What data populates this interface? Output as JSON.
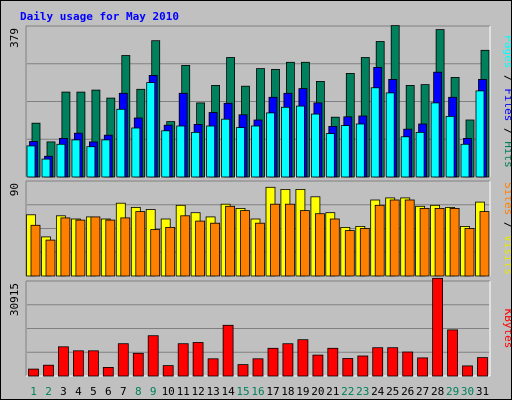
{
  "chart_data": {
    "type": "bar",
    "title": "Daily usage for May 2010",
    "x": [
      "1",
      "2",
      "3",
      "4",
      "5",
      "6",
      "7",
      "8",
      "9",
      "10",
      "11",
      "12",
      "13",
      "14",
      "15",
      "16",
      "17",
      "18",
      "19",
      "20",
      "21",
      "22",
      "23",
      "24",
      "25",
      "26",
      "27",
      "28",
      "29",
      "30",
      "31"
    ],
    "weekend_days": [
      "1",
      "2",
      "8",
      "9",
      "15",
      "16",
      "22",
      "23",
      "29",
      "30"
    ],
    "panels": [
      {
        "max_label": "379",
        "ylim": [
          0,
          379
        ],
        "series": [
          {
            "name": "Pages",
            "color": "#00ffff",
            "values": [
              78,
              45,
              82,
              93,
              76,
              93,
              170,
              123,
              237,
              116,
              128,
              112,
              128,
              145,
              124,
              128,
              161,
              175,
              178,
              158,
              109,
              129,
              133,
              224,
              211,
              101,
              112,
              186,
              152,
              82,
              216
            ]
          },
          {
            "name": "Files",
            "color": "#0000ff",
            "values": [
              89,
              52,
              97,
              110,
              88,
              105,
              210,
              148,
              255,
              130,
              210,
              132,
              162,
              185,
              156,
              143,
              200,
              210,
              222,
              186,
              127,
              151,
              153,
              275,
              245,
              120,
              133,
              263,
              200,
              97,
              245
            ]
          },
          {
            "name": "Hits",
            "color": "#00805c",
            "values": [
              135,
              88,
              213,
              213,
              218,
              198,
              305,
              220,
              342,
              139,
              280,
              186,
              230,
              300,
              228,
              272,
              270,
              288,
              288,
              240,
              150,
              260,
              300,
              340,
              380,
              230,
              232,
              370,
              250,
              143,
              318
            ]
          }
        ]
      },
      {
        "max_label": "90",
        "ylim": [
          0,
          90
        ],
        "series": [
          {
            "name": "Sites",
            "color": "#ff8000",
            "values": [
              48,
              34,
              55,
              53,
              56,
              53,
              55,
              61,
              44,
              46,
              57,
              52,
              50,
              66,
              62,
              50,
              68,
              68,
              62,
              59,
              54,
              43,
              45,
              67,
              72,
              72,
              64,
              64,
              64,
              45,
              61
            ]
          },
          {
            "name": "Visits",
            "color": "#ffff00",
            "values": [
              58,
              37,
              57,
              54,
              56,
              54,
              69,
              65,
              63,
              54,
              67,
              60,
              56,
              68,
              64,
              54,
              84,
              82,
              82,
              75,
              60,
              46,
              47,
              72,
              74,
              74,
              66,
              67,
              65,
              47,
              70
            ]
          }
        ]
      },
      {
        "max_label": "30915",
        "ylim": [
          0,
          30915
        ],
        "series": [
          {
            "name": "KBytes",
            "color": "#ff0000",
            "values": [
              2258,
              3500,
              9500,
              8200,
              8200,
              2800,
              10500,
              7400,
              13100,
              3400,
              10500,
              10900,
              5600,
              16500,
              3700,
              5600,
              9000,
              10500,
              11800,
              6800,
              9000,
              5700,
              6500,
              9200,
              9200,
              7800,
              5900,
              31800,
              15000,
              3300,
              6000
            ]
          }
        ]
      }
    ]
  }
}
